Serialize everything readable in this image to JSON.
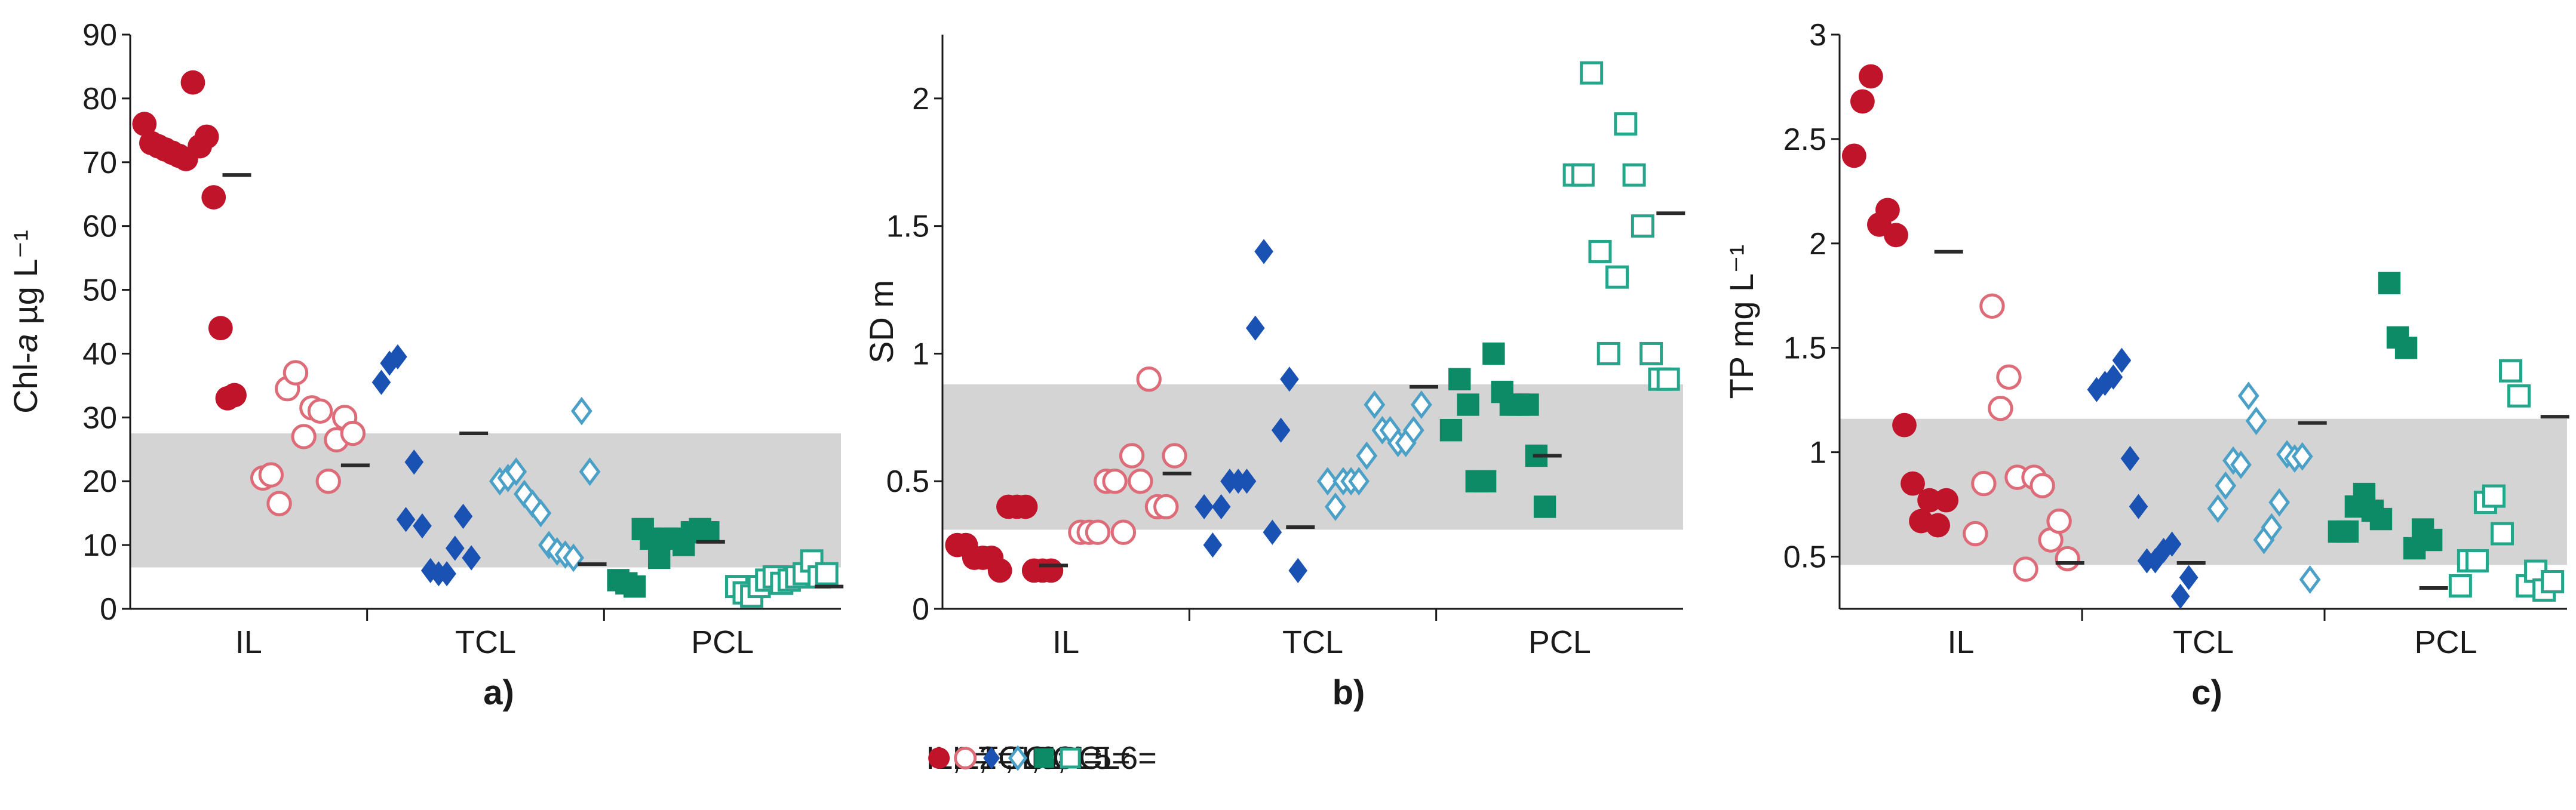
{
  "chart_data": [
    {
      "type": "scatter",
      "panel_label": "a)",
      "ylabel_prefix": "Chl-",
      "ylabel_italic": "a",
      "ylabel_suffix": " µg L⁻¹",
      "ylim": [
        0,
        90
      ],
      "yticks": [
        0,
        10,
        20,
        30,
        40,
        50,
        60,
        70,
        80,
        90
      ],
      "band": [
        6.5,
        27.5
      ],
      "groups": [
        {
          "label": "IL",
          "series": [
            "IL1",
            "IL2"
          ]
        },
        {
          "label": "TCL",
          "series": [
            "TCL3",
            "TCL4"
          ]
        },
        {
          "label": "PCL",
          "series": [
            "PCL5",
            "PCL6"
          ]
        }
      ],
      "series": [
        {
          "name": "IL1",
          "values": [
            76,
            73,
            72.5,
            72,
            71.5,
            71,
            70.5,
            82.5,
            72.5,
            74,
            64.5,
            44,
            33,
            33.5
          ]
        },
        {
          "name": "IL2",
          "values": [
            20.5,
            21,
            16.5,
            34.5,
            37,
            27,
            31.5,
            31,
            20,
            26.5,
            30,
            27.5
          ]
        },
        {
          "name": "TCL3",
          "values": [
            35.5,
            38.5,
            39.5,
            14,
            23,
            13,
            6,
            5.5,
            5.5,
            9.5,
            14.5,
            8
          ]
        },
        {
          "name": "TCL4",
          "values": [
            20,
            20.5,
            21.5,
            18,
            16.5,
            15,
            10,
            9,
            8.5,
            8,
            31,
            21.5
          ]
        },
        {
          "name": "PCL5",
          "values": [
            4.5,
            4,
            3.5,
            12.5,
            11,
            8,
            11,
            11,
            10,
            12,
            12.5,
            12
          ]
        },
        {
          "name": "PCL6",
          "values": [
            3.5,
            2.5,
            2,
            3.5,
            4.5,
            5,
            4,
            4.5,
            5,
            5.5,
            7.5,
            5,
            5.5
          ]
        }
      ],
      "medians": [
        {
          "series": "IL1",
          "value": 68
        },
        {
          "series": "IL2",
          "value": 22.5
        },
        {
          "series": "TCL3",
          "value": 27.5
        },
        {
          "series": "TCL4",
          "value": 7
        },
        {
          "series": "PCL5",
          "value": 10.5
        },
        {
          "series": "PCL6",
          "value": 3.5
        }
      ]
    },
    {
      "type": "scatter",
      "panel_label": "b)",
      "ylabel_prefix": "SD m",
      "ylabel_italic": "",
      "ylabel_suffix": "",
      "ylim": [
        0,
        2.25
      ],
      "yticks": [
        0,
        0.5,
        1,
        1.5,
        2
      ],
      "band": [
        0.31,
        0.88
      ],
      "groups": [
        {
          "label": "IL",
          "series": [
            "IL1",
            "IL2"
          ]
        },
        {
          "label": "TCL",
          "series": [
            "TCL3",
            "TCL4"
          ]
        },
        {
          "label": "PCL",
          "series": [
            "PCL5",
            "PCL6"
          ]
        }
      ],
      "series": [
        {
          "name": "IL1",
          "values": [
            0.25,
            0.25,
            0.2,
            0.2,
            0.2,
            0.15,
            0.4,
            0.4,
            0.4,
            0.15,
            0.15,
            0.15
          ]
        },
        {
          "name": "IL2",
          "values": [
            0.3,
            0.3,
            0.3,
            0.5,
            0.5,
            0.3,
            0.6,
            0.5,
            0.9,
            0.4,
            0.4,
            0.6
          ]
        },
        {
          "name": "TCL3",
          "values": [
            0.4,
            0.25,
            0.4,
            0.5,
            0.5,
            0.5,
            1.1,
            1.4,
            0.3,
            0.7,
            0.9,
            0.15
          ]
        },
        {
          "name": "TCL4",
          "values": [
            0.5,
            0.4,
            0.5,
            0.5,
            0.5,
            0.6,
            0.8,
            0.7,
            0.7,
            0.65,
            0.65,
            0.7,
            0.8
          ]
        },
        {
          "name": "PCL5",
          "values": [
            0.7,
            0.9,
            0.8,
            0.5,
            0.5,
            1.0,
            0.85,
            0.8,
            0.8,
            0.8,
            0.6,
            0.4
          ]
        },
        {
          "name": "PCL6",
          "values": [
            1.7,
            1.7,
            2.1,
            1.4,
            1.0,
            1.3,
            1.9,
            1.7,
            1.5,
            1.0,
            0.9,
            0.9
          ]
        }
      ],
      "medians": [
        {
          "series": "IL1",
          "value": 0.17
        },
        {
          "series": "IL2",
          "value": 0.53
        },
        {
          "series": "TCL3",
          "value": 0.32
        },
        {
          "series": "TCL4",
          "value": 0.87
        },
        {
          "series": "PCL5",
          "value": 0.6
        },
        {
          "series": "PCL6",
          "value": 1.55
        }
      ]
    },
    {
      "type": "scatter",
      "panel_label": "c)",
      "ylabel_prefix": "TP mg L⁻¹",
      "ylabel_italic": "",
      "ylabel_suffix": "",
      "ylim": [
        0.25,
        3
      ],
      "yticks": [
        0.5,
        1,
        1.5,
        2,
        2.5,
        3
      ],
      "band": [
        0.46,
        1.16
      ],
      "groups": [
        {
          "label": "IL",
          "series": [
            "IL1",
            "IL2"
          ]
        },
        {
          "label": "TCL",
          "series": [
            "TCL3",
            "TCL4"
          ]
        },
        {
          "label": "PCL",
          "series": [
            "PCL5",
            "PCL6"
          ]
        }
      ],
      "series": [
        {
          "name": "IL1",
          "values": [
            2.42,
            2.68,
            2.8,
            2.09,
            2.16,
            2.04,
            1.13,
            0.85,
            0.67,
            0.77,
            0.65,
            0.77
          ]
        },
        {
          "name": "IL2",
          "values": [
            0.61,
            0.85,
            1.7,
            1.21,
            1.36,
            0.88,
            0.44,
            0.88,
            0.84,
            0.58,
            0.67,
            0.49
          ]
        },
        {
          "name": "TCL3",
          "values": [
            1.3,
            1.33,
            1.36,
            1.44,
            0.97,
            0.74,
            0.48,
            0.48,
            0.53,
            0.56,
            0.31,
            0.4
          ]
        },
        {
          "name": "TCL4",
          "values": [
            0.73,
            0.84,
            0.96,
            0.94,
            1.27,
            1.15,
            0.58,
            0.64,
            0.76,
            0.99,
            0.97,
            0.98,
            0.39
          ]
        },
        {
          "name": "PCL5",
          "values": [
            0.62,
            0.62,
            0.74,
            0.8,
            0.72,
            0.68,
            1.81,
            1.55,
            1.5,
            0.54,
            0.63,
            0.58
          ]
        },
        {
          "name": "PCL6",
          "values": [
            0.36,
            0.48,
            0.48,
            0.76,
            0.79,
            0.61,
            1.39,
            1.27,
            0.36,
            0.43,
            0.34,
            0.38
          ]
        }
      ],
      "medians": [
        {
          "series": "IL1",
          "value": 1.96
        },
        {
          "series": "IL2",
          "value": 0.47
        },
        {
          "series": "TCL3",
          "value": 0.47
        },
        {
          "series": "TCL4",
          "value": 1.14
        },
        {
          "series": "PCL5",
          "value": 0.35
        },
        {
          "series": "PCL6",
          "value": 1.17
        }
      ]
    }
  ],
  "legend": [
    {
      "series": "IL1",
      "label": "IL1=",
      "sep": ", "
    },
    {
      "series": "IL2",
      "label": "IL2= ",
      "sep": ", "
    },
    {
      "series": "TCL3",
      "label": "TCL3=",
      "sep": ", "
    },
    {
      "series": "TCL4",
      "label": "TCL4=",
      "sep": ", "
    },
    {
      "series": "PCL5",
      "label": "PCL5=",
      "sep": ", "
    },
    {
      "series": "PCL6",
      "label": "PCL6=",
      "sep": ""
    }
  ],
  "styles": {
    "IL1": {
      "marker": "circle",
      "filled": true,
      "color": "#c0142a"
    },
    "IL2": {
      "marker": "circle",
      "filled": false,
      "color": "#dd6b78"
    },
    "TCL3": {
      "marker": "diamond",
      "filled": true,
      "color": "#1a52b3"
    },
    "TCL4": {
      "marker": "diamond",
      "filled": false,
      "color": "#4aa0c6"
    },
    "PCL5": {
      "marker": "square",
      "filled": true,
      "color": "#0d8a66"
    },
    "PCL6": {
      "marker": "square",
      "filled": false,
      "color": "#25a58a"
    },
    "band": "#d4d4d4",
    "axis": "#1a1a1a",
    "median": "#2a2a2a"
  }
}
